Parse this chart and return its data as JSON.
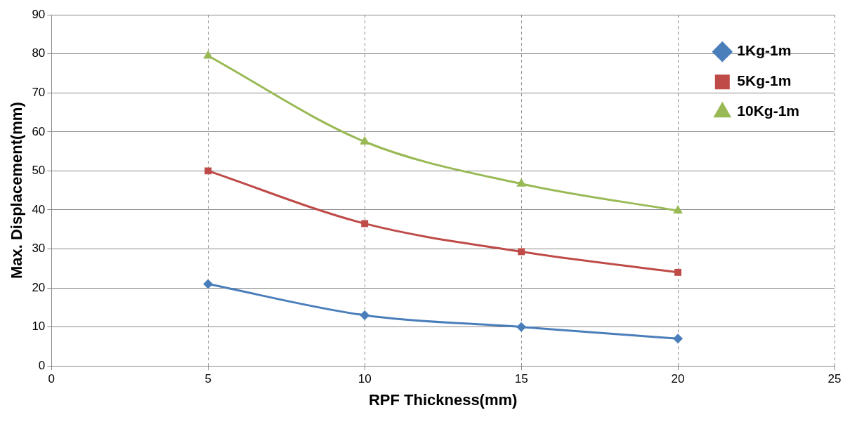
{
  "chart_data": {
    "type": "line",
    "xlabel": "RPF Thickness(mm)",
    "ylabel": "Max. Displacement(mm)",
    "x": [
      5,
      10,
      15,
      20
    ],
    "series": [
      {
        "name": "1Kg-1m",
        "color": "#4a7ebb",
        "marker": "diamond",
        "values": [
          21,
          13,
          10,
          7
        ]
      },
      {
        "name": "5Kg-1m",
        "color": "#be4b48",
        "marker": "square",
        "values": [
          50,
          36.5,
          29.3,
          24
        ]
      },
      {
        "name": "10Kg-1m",
        "color": "#98b954",
        "marker": "triangle",
        "values": [
          79.5,
          57.5,
          46.7,
          39.8
        ]
      }
    ],
    "xlim": [
      0,
      25
    ],
    "xticks": [
      0,
      5,
      10,
      15,
      20,
      25
    ],
    "ylim": [
      0,
      90
    ],
    "yticks": [
      0,
      10,
      20,
      30,
      40,
      50,
      60,
      70,
      80,
      90
    ],
    "grid": true,
    "legend": "top right",
    "line_style": "solid"
  }
}
